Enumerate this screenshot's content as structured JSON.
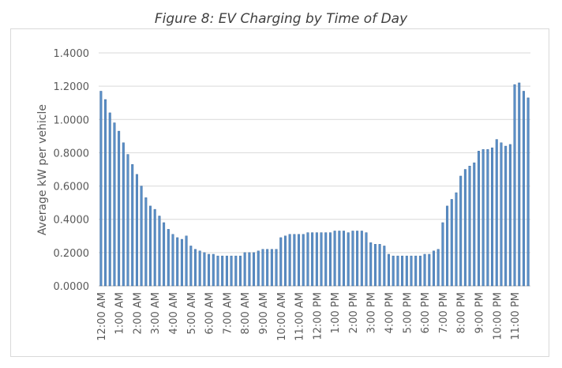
{
  "chart_data": {
    "type": "bar",
    "title": "Figure 8: EV Charging by Time of Day",
    "xlabel": "",
    "ylabel": "Average kW per vehicle",
    "ylim": [
      0,
      1.4
    ],
    "y_ticks": [
      "0.0000",
      "0.2000",
      "0.4000",
      "0.6000",
      "0.8000",
      "1.0000",
      "1.2000",
      "1.4000"
    ],
    "grid": true,
    "bar_color": "#5b8fc7",
    "bar_edge_color": "#2e5f96",
    "categories": [
      "12:00 AM",
      "12:15 AM",
      "12:30 AM",
      "12:45 AM",
      "1:00 AM",
      "1:15 AM",
      "1:30 AM",
      "1:45 AM",
      "2:00 AM",
      "2:15 AM",
      "2:30 AM",
      "2:45 AM",
      "3:00 AM",
      "3:15 AM",
      "3:30 AM",
      "3:45 AM",
      "4:00 AM",
      "4:15 AM",
      "4:30 AM",
      "4:45 AM",
      "5:00 AM",
      "5:15 AM",
      "5:30 AM",
      "5:45 AM",
      "6:00 AM",
      "6:15 AM",
      "6:30 AM",
      "6:45 AM",
      "7:00 AM",
      "7:15 AM",
      "7:30 AM",
      "7:45 AM",
      "8:00 AM",
      "8:15 AM",
      "8:30 AM",
      "8:45 AM",
      "9:00 AM",
      "9:15 AM",
      "9:30 AM",
      "9:45 AM",
      "10:00 AM",
      "10:15 AM",
      "10:30 AM",
      "10:45 AM",
      "11:00 AM",
      "11:15 AM",
      "11:30 AM",
      "11:45 AM",
      "12:00 PM",
      "12:15 PM",
      "12:30 PM",
      "12:45 PM",
      "1:00 PM",
      "1:15 PM",
      "1:30 PM",
      "1:45 PM",
      "2:00 PM",
      "2:15 PM",
      "2:30 PM",
      "2:45 PM",
      "3:00 PM",
      "3:15 PM",
      "3:30 PM",
      "3:45 PM",
      "4:00 PM",
      "4:15 PM",
      "4:30 PM",
      "4:45 PM",
      "5:00 PM",
      "5:15 PM",
      "5:30 PM",
      "5:45 PM",
      "6:00 PM",
      "6:15 PM",
      "6:30 PM",
      "6:45 PM",
      "7:00 PM",
      "7:15 PM",
      "7:30 PM",
      "7:45 PM",
      "8:00 PM",
      "8:15 PM",
      "8:30 PM",
      "8:45 PM",
      "9:00 PM",
      "9:15 PM",
      "9:30 PM",
      "9:45 PM",
      "10:00 PM",
      "10:15 PM",
      "10:30 PM",
      "10:45 PM",
      "11:00 PM",
      "11:15 PM",
      "11:30 PM",
      "11:45 PM"
    ],
    "values": [
      1.17,
      1.12,
      1.04,
      0.98,
      0.93,
      0.86,
      0.79,
      0.73,
      0.67,
      0.6,
      0.53,
      0.48,
      0.46,
      0.42,
      0.38,
      0.34,
      0.31,
      0.29,
      0.28,
      0.3,
      0.24,
      0.22,
      0.21,
      0.2,
      0.19,
      0.19,
      0.18,
      0.18,
      0.18,
      0.18,
      0.18,
      0.18,
      0.2,
      0.2,
      0.2,
      0.21,
      0.22,
      0.22,
      0.22,
      0.22,
      0.29,
      0.3,
      0.31,
      0.31,
      0.31,
      0.31,
      0.32,
      0.32,
      0.32,
      0.32,
      0.32,
      0.32,
      0.33,
      0.33,
      0.33,
      0.32,
      0.33,
      0.33,
      0.33,
      0.32,
      0.26,
      0.25,
      0.25,
      0.24,
      0.19,
      0.18,
      0.18,
      0.18,
      0.18,
      0.18,
      0.18,
      0.18,
      0.19,
      0.19,
      0.21,
      0.22,
      0.38,
      0.48,
      0.52,
      0.56,
      0.66,
      0.7,
      0.72,
      0.74,
      0.81,
      0.82,
      0.82,
      0.83,
      0.88,
      0.86,
      0.84,
      0.85,
      1.21,
      1.22,
      1.17,
      1.13
    ],
    "x_tick_labels": [
      "12:00 AM",
      "1:00 AM",
      "2:00 AM",
      "3:00 AM",
      "4:00 AM",
      "5:00 AM",
      "6:00 AM",
      "7:00 AM",
      "8:00 AM",
      "9:00 AM",
      "10:00 AM",
      "11:00 AM",
      "12:00 PM",
      "1:00 PM",
      "2:00 PM",
      "3:00 PM",
      "4:00 PM",
      "5:00 PM",
      "6:00 PM",
      "7:00 PM",
      "8:00 PM",
      "9:00 PM",
      "10:00 PM",
      "11:00 PM"
    ]
  }
}
